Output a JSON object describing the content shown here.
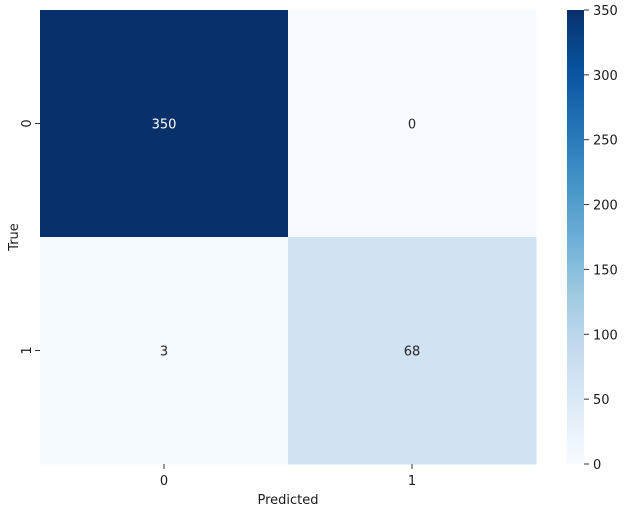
{
  "chart_data": {
    "type": "heatmap",
    "title": "",
    "xlabel": "Predicted",
    "ylabel": "True",
    "x_categories": [
      "0",
      "1"
    ],
    "y_categories": [
      "0",
      "1"
    ],
    "values": [
      [
        350,
        0
      ],
      [
        3,
        68
      ]
    ],
    "annotations": [
      [
        "350",
        "0"
      ],
      [
        "3",
        "68"
      ]
    ],
    "colorbar": {
      "min": 0,
      "max": 350,
      "ticks": [
        "0",
        "50",
        "100",
        "150",
        "200",
        "250",
        "300",
        "350"
      ],
      "colormap": "Blues",
      "low_color": "#f7fbff",
      "high_color": "#08306b"
    },
    "grid": false
  }
}
